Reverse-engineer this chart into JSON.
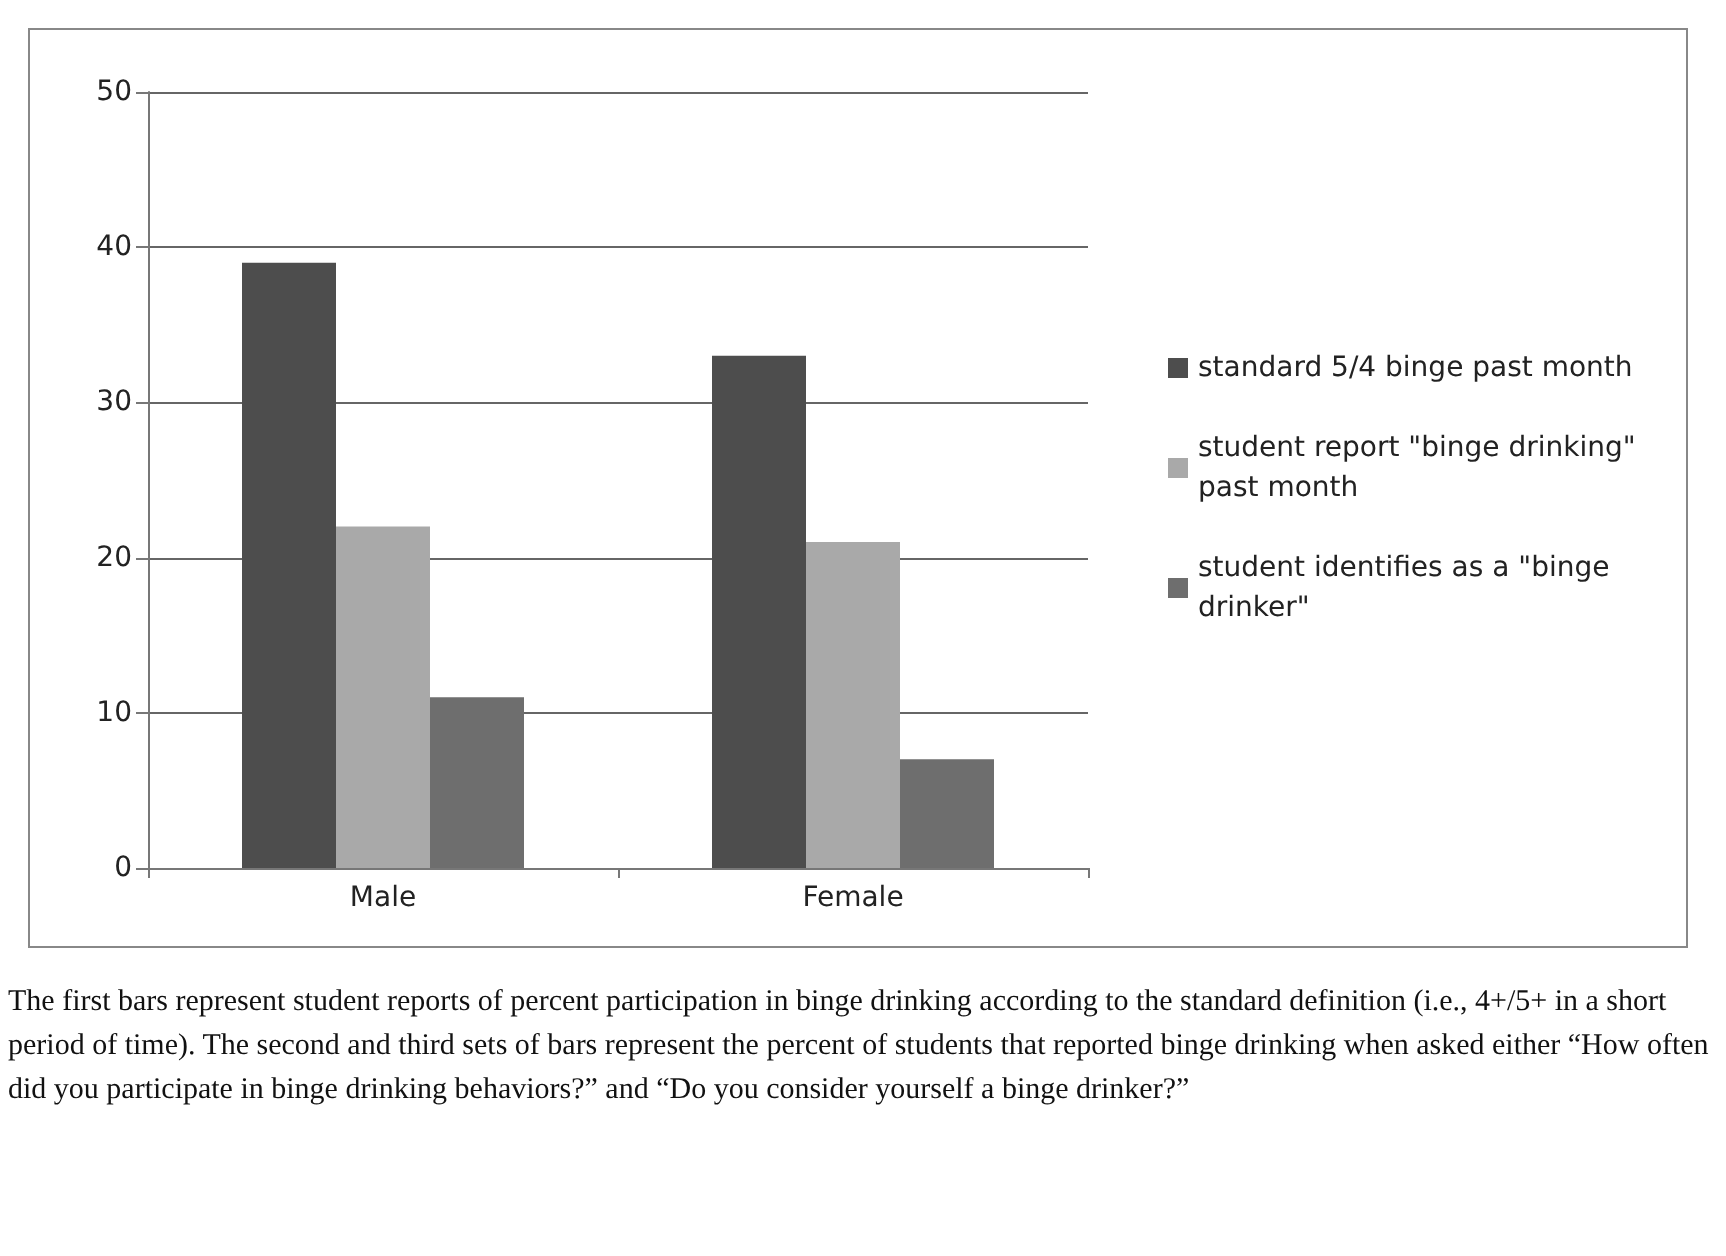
{
  "chart_data": {
    "type": "bar",
    "categories": [
      "Male",
      "Female"
    ],
    "series": [
      {
        "name": "standard 5/4 binge past month",
        "color": "#4d4d4d",
        "values": [
          39,
          33
        ]
      },
      {
        "name": "student report \"binge drinking\" past month",
        "color": "#a9a9a9",
        "values": [
          22,
          21
        ]
      },
      {
        "name": "student identifies as a \"binge drinker\"",
        "color": "#6e6e6e",
        "values": [
          11,
          7
        ]
      }
    ],
    "ylim": [
      0,
      50
    ],
    "yticks": [
      0,
      10,
      20,
      30,
      40,
      50
    ],
    "grid": "y",
    "legend": "right",
    "annotations": [
      "The first bars represent student reports of percent participation in binge drinking according to the standard definition (i.e., 4+/5+ in a short period of time). The second and third sets of bars represent the percent of students that reported binge drinking when asked either “How often did you participate in binge drinking behaviors?” and “Do you consider yourself a binge drinker?”"
    ]
  }
}
